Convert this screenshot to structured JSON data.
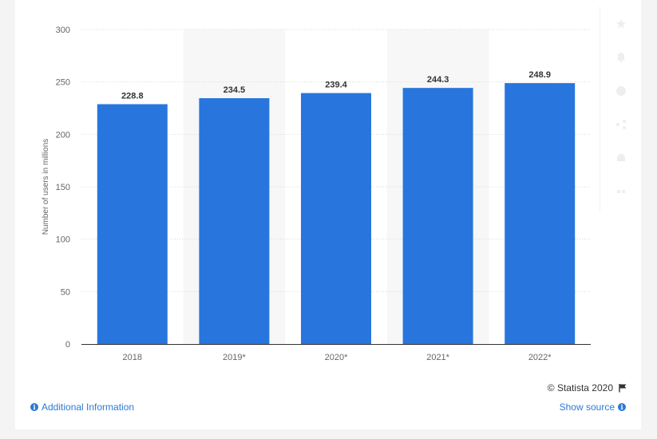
{
  "chart_data": {
    "type": "bar",
    "categories": [
      "2018",
      "2019*",
      "2020*",
      "2021*",
      "2022*"
    ],
    "values": [
      228.8,
      234.5,
      239.4,
      244.3,
      248.9
    ],
    "data_labels": [
      "228.8",
      "234.5",
      "239.4",
      "244.3",
      "248.9"
    ],
    "title": "",
    "xlabel": "",
    "ylabel": "Number of users in millions",
    "ylim": [
      0,
      300
    ],
    "yticks": [
      0,
      50,
      100,
      150,
      200,
      250,
      300
    ],
    "ytick_labels": [
      "0",
      "50",
      "100",
      "150",
      "200",
      "250",
      "300"
    ],
    "grid": true,
    "legend": "none",
    "bar_color": "#2876dd"
  },
  "footer": {
    "copyright": "© Statista 2020",
    "additional_info": "Additional Information",
    "show_source": "Show source"
  },
  "toolbar": {
    "icons": [
      "star-icon",
      "bell-icon",
      "info-icon",
      "share-icon",
      "print-icon",
      "quote-icon"
    ]
  },
  "colors": {
    "accent": "#2c7ad6",
    "bar": "#2876dd",
    "band": "#f7f7f7",
    "grid": "#d9d9d9"
  }
}
